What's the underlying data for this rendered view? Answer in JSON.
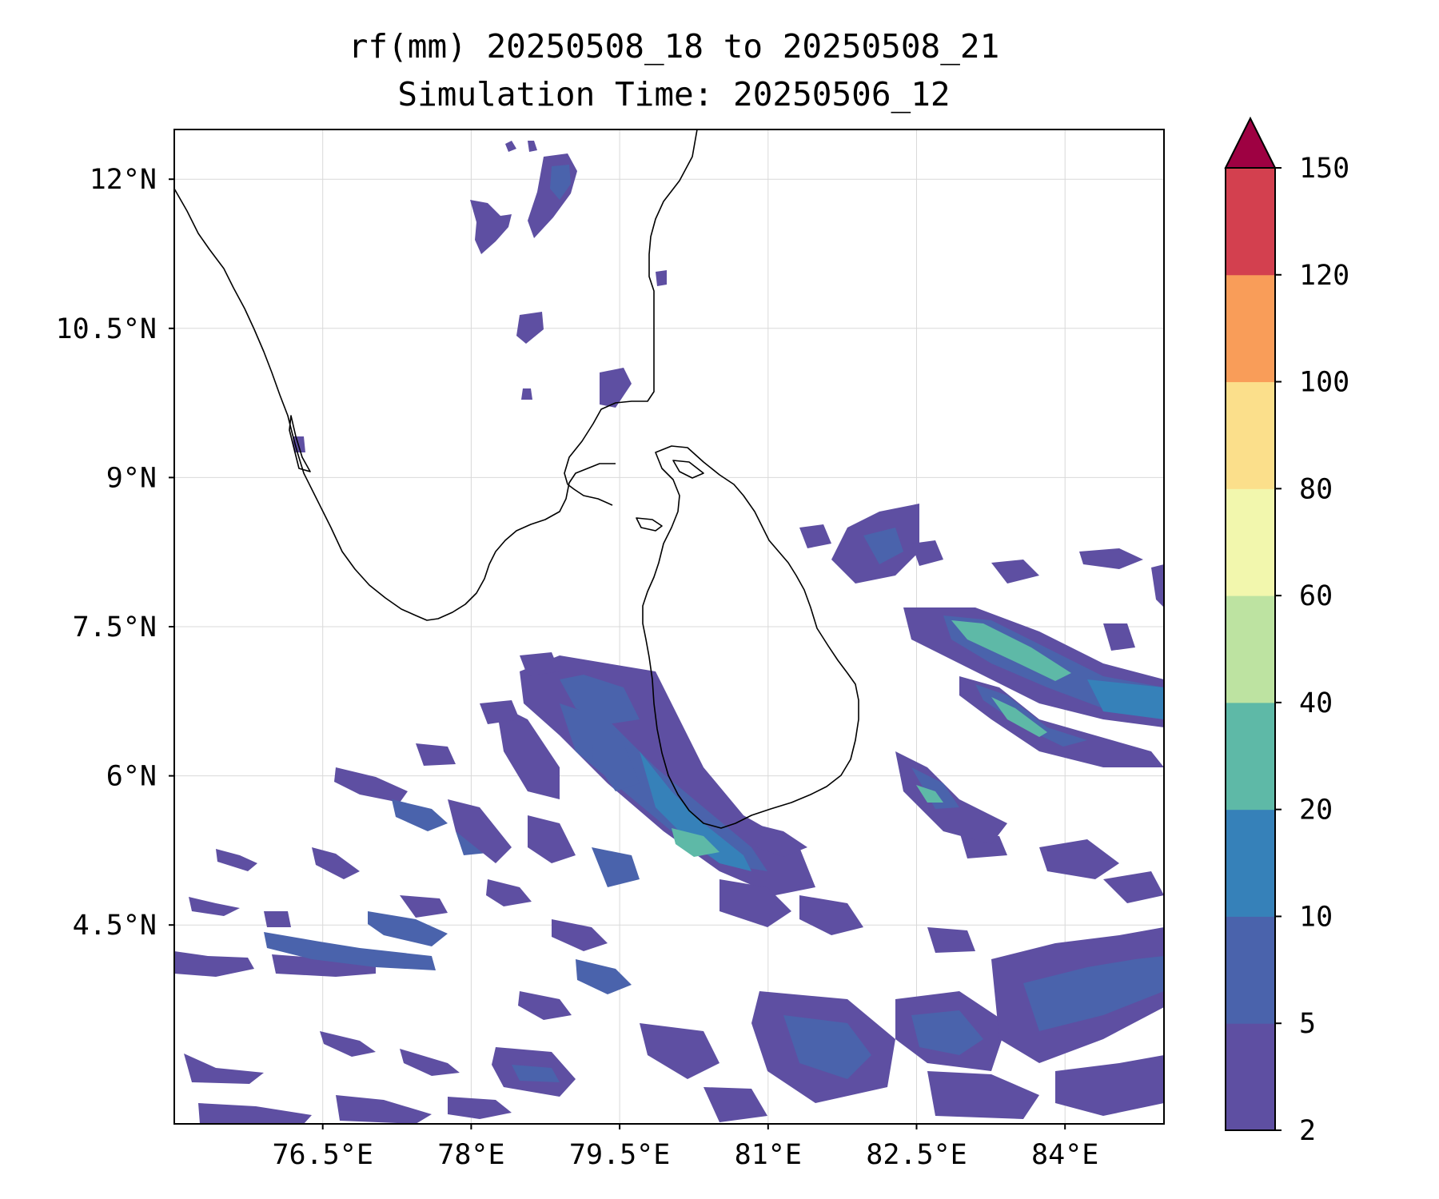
{
  "title": {
    "line1": "rf(mm) 20250508_18 to 20250508_21",
    "line2": "Simulation Time: 20250506_12"
  },
  "map": {
    "lon_range": [
      75.0,
      85.0
    ],
    "lat_range": [
      2.5,
      12.5
    ],
    "lon_ticks": [
      "76.5°E",
      "78°E",
      "79.5°E",
      "81°E",
      "82.5°E",
      "84°E"
    ],
    "lat_ticks": [
      "12°N",
      "10.5°N",
      "9°N",
      "7.5°N",
      "6°N",
      "4.5°N"
    ],
    "gridlines": true
  },
  "colorbar": {
    "levels": [
      "2",
      "5",
      "10",
      "20",
      "40",
      "60",
      "80",
      "100",
      "120",
      "150"
    ],
    "colors": [
      "#5e4fa2",
      "#4a63ac",
      "#3681b9",
      "#5eb9a7",
      "#bde3a1",
      "#f2f7ad",
      "#fbdf8b",
      "#f99d59",
      "#d3404f",
      "#9e0142"
    ],
    "extend": "max"
  },
  "coastline_color": "#000000"
}
